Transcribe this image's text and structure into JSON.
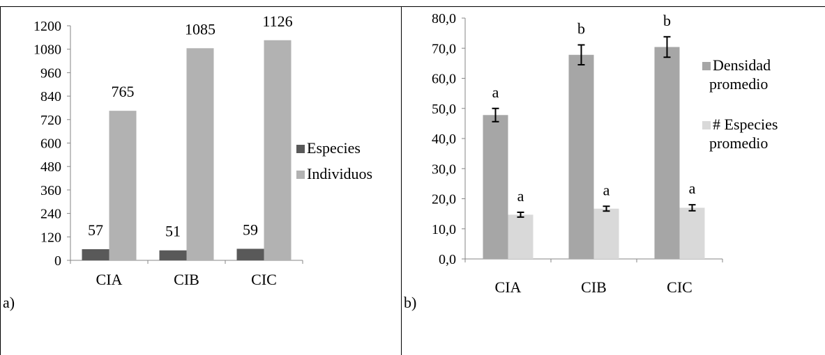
{
  "colors": {
    "especies": "#595959",
    "individuos": "#b2b2b2",
    "densidad": "#a6a6a6",
    "num_especies": "#d9d9d9",
    "axis": "#868686",
    "border": "#000000"
  },
  "panels": {
    "a": {
      "label": "a)"
    },
    "b": {
      "label": "b)"
    }
  },
  "chart_data": [
    {
      "type": "bar",
      "title": "",
      "xlabel": "",
      "ylabel": "",
      "categories": [
        "CIA",
        "CIB",
        "CIC"
      ],
      "ylim": [
        0,
        1200
      ],
      "yticks": [
        "0",
        "120",
        "240",
        "360",
        "480",
        "600",
        "720",
        "840",
        "960",
        "1080",
        "1200"
      ],
      "grid": false,
      "legend_position": "right",
      "series": [
        {
          "name": "Especies",
          "values": [
            57,
            51,
            59
          ],
          "labels": [
            "57",
            "51",
            "59"
          ]
        },
        {
          "name": "Individuos",
          "values": [
            765,
            1085,
            1126
          ],
          "labels": [
            "765",
            "1085",
            "1126"
          ]
        }
      ]
    },
    {
      "type": "bar",
      "title": "",
      "xlabel": "",
      "ylabel": "",
      "categories": [
        "CIA",
        "CIB",
        "CIC"
      ],
      "ylim": [
        0,
        80
      ],
      "yticks": [
        "0,0",
        "10,0",
        "20,0",
        "30,0",
        "40,0",
        "50,0",
        "60,0",
        "70,0",
        "80,0"
      ],
      "grid": false,
      "legend_position": "right",
      "series": [
        {
          "legend_lines": [
            "Densidad",
            "promedio"
          ],
          "values": [
            47.8,
            67.8,
            70.4
          ],
          "errors": [
            2.2,
            3.3,
            3.4
          ],
          "letters": [
            "a",
            "b",
            "b"
          ]
        },
        {
          "legend_lines": [
            "# Especies",
            "promedio"
          ],
          "values": [
            14.7,
            16.7,
            17.0
          ],
          "errors": [
            0.8,
            0.8,
            1.0
          ],
          "letters": [
            "a",
            "a",
            "a"
          ]
        }
      ]
    }
  ]
}
